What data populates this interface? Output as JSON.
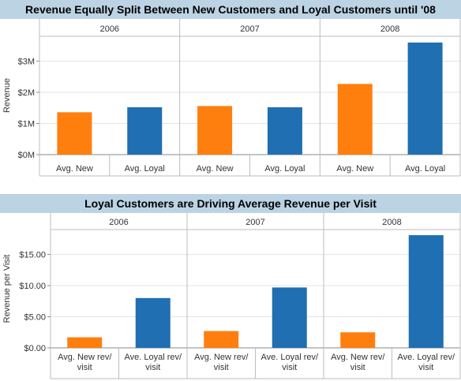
{
  "chart_data": [
    {
      "type": "bar",
      "title": "Revenue Equally Split Between New Customers and Loyal Customers until '08",
      "ylabel": "Revenue",
      "ylim": [
        0,
        3.8
      ],
      "yticks": [
        0,
        1,
        2,
        3
      ],
      "ytick_labels": [
        "$0M",
        "$1M",
        "$2M",
        "$3M"
      ],
      "panels": [
        "2006",
        "2007",
        "2008"
      ],
      "categories": [
        "Avg. New",
        "Avg. Loyal"
      ],
      "colors": [
        "#ff7f0e",
        "#1f6fb2"
      ],
      "values": [
        [
          1.36,
          1.52
        ],
        [
          1.56,
          1.52
        ],
        [
          2.27,
          3.6
        ]
      ],
      "grid": true
    },
    {
      "type": "bar",
      "title": "Loyal Customers are Driving Average Revenue per Visit",
      "ylabel": "Revenue per Visit",
      "ylim": [
        0,
        19
      ],
      "yticks": [
        0,
        5,
        10,
        15
      ],
      "ytick_labels": [
        "$0.00",
        "$5.00",
        "$10.00",
        "$15.00"
      ],
      "panels": [
        "2006",
        "2007",
        "2008"
      ],
      "categories": [
        [
          "Avg. New rev/",
          "visit"
        ],
        [
          "Ave. Loyal rev/",
          "visit"
        ]
      ],
      "colors": [
        "#ff7f0e",
        "#1f6fb2"
      ],
      "values": [
        [
          1.7,
          8.0
        ],
        [
          2.7,
          9.7
        ],
        [
          2.5,
          18.1
        ]
      ],
      "grid": true
    }
  ]
}
